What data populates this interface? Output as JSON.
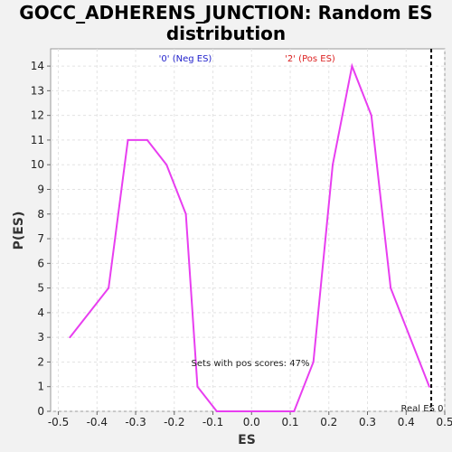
{
  "chart_data": {
    "type": "line",
    "title_line1": "GOCC_ADHERENS_JUNCTION: Random ES",
    "title_line2": "distribution",
    "xlabel": "ES",
    "ylabel": "P(ES)",
    "xlim": [
      -0.52,
      0.5
    ],
    "ylim": [
      0,
      14.7
    ],
    "x_ticks": [
      -0.5,
      -0.4,
      -0.3,
      -0.2,
      -0.1,
      0.0,
      0.1,
      0.2,
      0.3,
      0.4,
      0.5
    ],
    "x_tick_labels": [
      "-0.5",
      "-0.4",
      "-0.3",
      "-0.2",
      "-0.1",
      "0.0",
      "0.1",
      "0.2",
      "0.3",
      "0.4",
      "0.5"
    ],
    "y_ticks": [
      0,
      1,
      2,
      3,
      4,
      5,
      6,
      7,
      8,
      9,
      10,
      11,
      12,
      13,
      14
    ],
    "y_tick_labels": [
      "0",
      "1",
      "2",
      "3",
      "4",
      "5",
      "6",
      "7",
      "8",
      "9",
      "10",
      "11",
      "12",
      "13",
      "14"
    ],
    "grid": true,
    "series": [
      {
        "color": "#e83ef0",
        "x": [
          -0.47,
          -0.37,
          -0.32,
          -0.27,
          -0.22,
          -0.17,
          -0.14,
          -0.09,
          -0.04,
          0.01,
          0.06,
          0.11,
          0.16,
          0.21,
          0.26,
          0.31,
          0.36,
          0.41,
          0.46
        ],
        "y": [
          3,
          5,
          11,
          11,
          10,
          8,
          1,
          0,
          0,
          0,
          0,
          0,
          2,
          10,
          14,
          12,
          5,
          3,
          1
        ]
      }
    ],
    "real_es": {
      "x": 0.465,
      "label": "Real ES 0"
    },
    "annotations": {
      "neg_label": "'0' (Neg ES)",
      "neg_color": "#2222cc",
      "pos_label": "'2' (Pos ES)",
      "pos_color": "#dd2222",
      "pos_fraction_text": "Sets with pos scores: 47%"
    }
  }
}
